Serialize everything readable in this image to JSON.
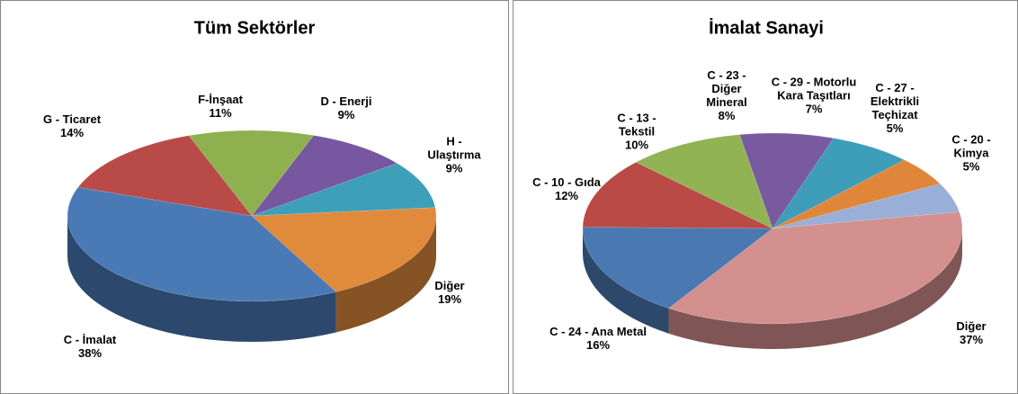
{
  "chart_data": [
    {
      "type": "pie",
      "title": "Tüm Sektörler",
      "categories": [
        "F-İnşaat",
        "D - Enerji",
        "H - Ulaştırma",
        "Diğer",
        "C - İmalat",
        "G - Ticaret"
      ],
      "values": [
        11,
        9,
        9,
        19,
        38,
        14
      ],
      "value_labels": [
        "11%",
        "9%",
        "9%",
        "19%",
        "38%",
        "14%"
      ],
      "colors": [
        "#8fb04f",
        "#7657a0",
        "#3d9fb8",
        "#e08a3c",
        "#4a7ab5",
        "#b84a48"
      ]
    },
    {
      "type": "pie",
      "title": "İmalat Sanayi",
      "categories": [
        "C - 23 - Diğer Mineral",
        "C - 29 - Motorlu Kara Taşıtları",
        "C - 27 - Elektrikli Teçhizat",
        "C - 20 - Kimya",
        "Diğer",
        "C - 24 - Ana Metal",
        "C - 10 - Gıda",
        "C - 13 - Tekstil"
      ],
      "values": [
        8,
        7,
        5,
        5,
        37,
        16,
        12,
        10
      ],
      "value_labels": [
        "8%",
        "7%",
        "5%",
        "5%",
        "37%",
        "16%",
        "12%",
        "10%"
      ],
      "colors": [
        "#7a5a9e",
        "#3e9db8",
        "#e0863a",
        "#99afd8",
        "#d4908e",
        "#4a78b0",
        "#b94a46",
        "#92b354"
      ]
    }
  ]
}
